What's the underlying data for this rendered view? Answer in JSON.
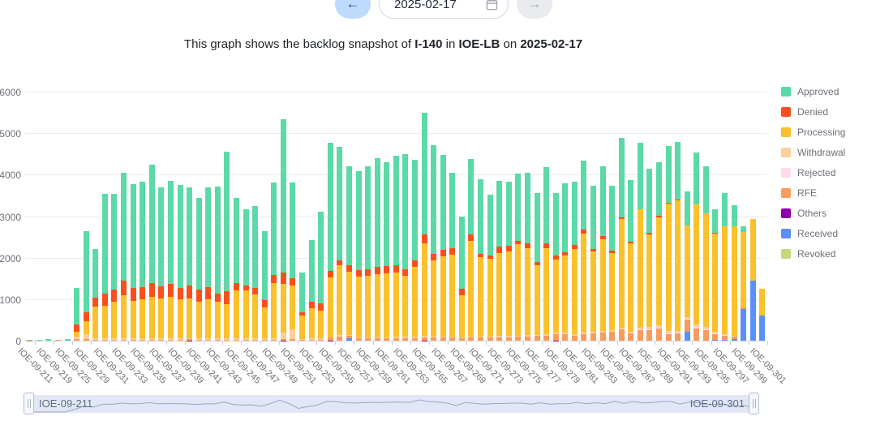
{
  "controls": {
    "prev_label": "←",
    "next_label": "→",
    "date_value": "2025-02-17"
  },
  "title": {
    "part1": "This graph shows the backlog snapshot of ",
    "form": "I-140",
    "part2": " in ",
    "center": "IOE-LB",
    "part3": " on ",
    "date": "2025-02-17"
  },
  "datazoom": {
    "start_label": "IOE-09-211",
    "end_label": "IOE-09-301"
  },
  "chart_data": {
    "type": "bar",
    "stacked": true,
    "grid": true,
    "legend_position": "right",
    "ylim": [
      0,
      6000
    ],
    "ytick_step": 1000,
    "y_tick_labels": [
      "0",
      "1000",
      "2000",
      "3000",
      "4000",
      "5000",
      "6000"
    ],
    "x_tick_labels": [
      "IOE-09-211",
      "IOE-09-219",
      "IOE-09-225",
      "IOE-09-229",
      "IOE-09-231",
      "IOE-09-233",
      "IOE-09-235",
      "IOE-09-237",
      "IOE-09-239",
      "IOE-09-241",
      "IOE-09-243",
      "IOE-09-245",
      "IOE-09-247",
      "IOE-09-249",
      "IOE-09-251",
      "IOE-09-253",
      "IOE-09-255",
      "IOE-09-257",
      "IOE-09-259",
      "IOE-09-261",
      "IOE-09-263",
      "IOE-09-265",
      "IOE-09-267",
      "IOE-09-269",
      "IOE-09-271",
      "IOE-09-273",
      "IOE-09-275",
      "IOE-09-277",
      "IOE-09-279",
      "IOE-09-281",
      "IOE-09-283",
      "IOE-09-285",
      "IOE-09-287",
      "IOE-09-289",
      "IOE-09-291",
      "IOE-09-293",
      "IOE-09-295",
      "IOE-09-297",
      "IOE-09-299",
      "IOE-09-301"
    ],
    "x_label_note": "79 bars total; tick labels sit under every other bar (even indices)",
    "series": [
      {
        "name": "Revoked",
        "color": "#c4d97c",
        "values": [
          0,
          0,
          0,
          0,
          0,
          0,
          0,
          0,
          0,
          0,
          0,
          0,
          0,
          0,
          0,
          0,
          0,
          0,
          0,
          0,
          0,
          0,
          0,
          0,
          0,
          0,
          0,
          0,
          0,
          0,
          0,
          0,
          0,
          0,
          0,
          0,
          0,
          0,
          0,
          0,
          0,
          0,
          0,
          0,
          0,
          0,
          0,
          0,
          0,
          0,
          0,
          0,
          0,
          0,
          0,
          0,
          0,
          0,
          0,
          0,
          0,
          0,
          0,
          0,
          0,
          0,
          0,
          0,
          0,
          0,
          0,
          0,
          0,
          0,
          0,
          0,
          0,
          0,
          0
        ]
      },
      {
        "name": "Received",
        "color": "#5b8ff9",
        "values": [
          0,
          0,
          0,
          0,
          0,
          0,
          0,
          0,
          0,
          0,
          0,
          0,
          0,
          0,
          0,
          0,
          0,
          0,
          0,
          0,
          0,
          0,
          0,
          0,
          0,
          0,
          0,
          0,
          0,
          0,
          0,
          0,
          0,
          0,
          50,
          0,
          0,
          0,
          0,
          0,
          0,
          0,
          0,
          0,
          0,
          0,
          0,
          0,
          0,
          0,
          0,
          0,
          0,
          0,
          0,
          0,
          0,
          0,
          0,
          0,
          0,
          0,
          0,
          0,
          0,
          0,
          0,
          0,
          0,
          0,
          210,
          0,
          0,
          20,
          20,
          30,
          765,
          1450,
          600
        ]
      },
      {
        "name": "Others",
        "color": "#8d00a8",
        "values": [
          0,
          0,
          0,
          0,
          0,
          0,
          0,
          0,
          0,
          0,
          0,
          0,
          0,
          0,
          0,
          0,
          0,
          10,
          0,
          0,
          0,
          0,
          0,
          0,
          0,
          0,
          0,
          10,
          0,
          0,
          0,
          0,
          10,
          0,
          0,
          0,
          0,
          0,
          0,
          0,
          0,
          0,
          10,
          0,
          0,
          0,
          0,
          0,
          0,
          0,
          0,
          0,
          0,
          0,
          0,
          0,
          10,
          0,
          0,
          0,
          0,
          0,
          0,
          0,
          0,
          0,
          0,
          0,
          0,
          0,
          0,
          0,
          0,
          0,
          0,
          0,
          0,
          0,
          0
        ]
      },
      {
        "name": "RFE",
        "color": "#f89b5d",
        "values": [
          10,
          0,
          0,
          20,
          0,
          40,
          30,
          20,
          20,
          20,
          20,
          20,
          20,
          20,
          20,
          20,
          20,
          20,
          20,
          20,
          20,
          20,
          20,
          20,
          20,
          20,
          20,
          30,
          30,
          20,
          20,
          20,
          70,
          100,
          60,
          50,
          50,
          50,
          50,
          60,
          60,
          60,
          70,
          70,
          70,
          70,
          50,
          70,
          70,
          70,
          80,
          80,
          90,
          100,
          110,
          120,
          140,
          150,
          120,
          150,
          180,
          200,
          220,
          270,
          170,
          250,
          260,
          300,
          160,
          170,
          290,
          300,
          250,
          130,
          90,
          60,
          40,
          0,
          0
        ]
      },
      {
        "name": "Rejected",
        "color": "#fbdce8",
        "values": [
          0,
          0,
          0,
          0,
          0,
          0,
          0,
          0,
          0,
          0,
          0,
          0,
          0,
          0,
          0,
          0,
          0,
          0,
          0,
          0,
          0,
          0,
          0,
          0,
          0,
          0,
          0,
          0,
          0,
          0,
          0,
          0,
          0,
          0,
          0,
          0,
          0,
          0,
          0,
          0,
          0,
          0,
          0,
          0,
          0,
          0,
          0,
          0,
          0,
          0,
          0,
          0,
          0,
          0,
          0,
          0,
          0,
          0,
          0,
          0,
          0,
          0,
          0,
          0,
          0,
          20,
          20,
          20,
          20,
          20,
          20,
          30,
          30,
          30,
          20,
          0,
          0,
          0,
          0
        ]
      },
      {
        "name": "Withdrawal",
        "color": "#fccf9b",
        "values": [
          0,
          0,
          0,
          0,
          0,
          50,
          120,
          40,
          30,
          30,
          30,
          30,
          30,
          30,
          30,
          30,
          30,
          30,
          30,
          30,
          40,
          40,
          30,
          30,
          30,
          30,
          30,
          160,
          240,
          20,
          30,
          40,
          0,
          30,
          30,
          30,
          30,
          30,
          30,
          30,
          30,
          30,
          30,
          30,
          30,
          30,
          30,
          30,
          30,
          30,
          30,
          30,
          30,
          30,
          30,
          40,
          40,
          40,
          40,
          40,
          40,
          40,
          40,
          50,
          40,
          50,
          60,
          60,
          50,
          50,
          50,
          60,
          60,
          40,
          30,
          30,
          0,
          0,
          0
        ]
      },
      {
        "name": "Processing",
        "color": "#fbc12c",
        "values": [
          0,
          0,
          0,
          0,
          0,
          120,
          310,
          760,
          800,
          880,
          1040,
          900,
          950,
          1010,
          960,
          1000,
          940,
          960,
          890,
          940,
          880,
          815,
          1160,
          1160,
          1065,
          760,
          1330,
          1170,
          1050,
          575,
          735,
          670,
          1450,
          1680,
          1525,
          1460,
          1480,
          1520,
          1540,
          1560,
          1470,
          1690,
          2240,
          1840,
          1935,
          1975,
          1020,
          2300,
          1910,
          1870,
          2000,
          2050,
          2200,
          2100,
          1670,
          2075,
          1770,
          1870,
          2040,
          2400,
          1940,
          2200,
          1860,
          2620,
          2135,
          2840,
          2220,
          2600,
          3080,
          3140,
          2210,
          2890,
          2730,
          2370,
          2590,
          2640,
          1805,
          1490,
          655
        ]
      },
      {
        "name": "Denied",
        "color": "#f94f1c",
        "values": [
          0,
          0,
          0,
          0,
          0,
          180,
          230,
          220,
          280,
          300,
          360,
          330,
          300,
          330,
          300,
          320,
          290,
          310,
          300,
          310,
          185,
          325,
          180,
          110,
          165,
          170,
          195,
          265,
          180,
          65,
          155,
          165,
          150,
          120,
          155,
          160,
          170,
          180,
          170,
          170,
          170,
          165,
          220,
          160,
          150,
          155,
          160,
          160,
          90,
          85,
          160,
          120,
          90,
          120,
          80,
          110,
          100,
          80,
          105,
          80,
          40,
          80,
          50,
          40,
          45,
          0,
          40,
          30,
          20,
          20,
          0,
          0,
          0,
          20,
          0,
          0,
          0,
          0,
          0
        ]
      },
      {
        "name": "Approved",
        "color": "#5bd9a7",
        "values": [
          10,
          25,
          30,
          0,
          30,
          880,
          1940,
          1160,
          2400,
          2300,
          2600,
          2490,
          2530,
          2860,
          2390,
          2480,
          2470,
          2370,
          2210,
          2400,
          2585,
          3360,
          2060,
          1840,
          1970,
          1660,
          2245,
          3705,
          2320,
          970,
          1480,
          2205,
          3090,
          2740,
          2390,
          2380,
          2480,
          2620,
          2510,
          2630,
          2770,
          2405,
          2930,
          2620,
          2295,
          1810,
          1730,
          1810,
          1790,
          1465,
          1590,
          1560,
          1620,
          1700,
          1660,
          1845,
          1490,
          1650,
          1525,
          1670,
          1540,
          1680,
          1570,
          1910,
          1480,
          1610,
          1550,
          1300,
          1360,
          1390,
          810,
          1250,
          1130,
          550,
          800,
          510,
          150,
          0,
          0
        ]
      }
    ],
    "legend": [
      "Approved",
      "Denied",
      "Processing",
      "Withdrawal",
      "Rejected",
      "RFE",
      "Others",
      "Received",
      "Revoked"
    ],
    "legend_colors": {
      "Approved": "#5bd9a7",
      "Denied": "#f94f1c",
      "Processing": "#fbc12c",
      "Withdrawal": "#fccf9b",
      "Rejected": "#fbdce8",
      "RFE": "#f89b5d",
      "Others": "#8d00a8",
      "Received": "#5b8ff9",
      "Revoked": "#c4d97c"
    }
  }
}
